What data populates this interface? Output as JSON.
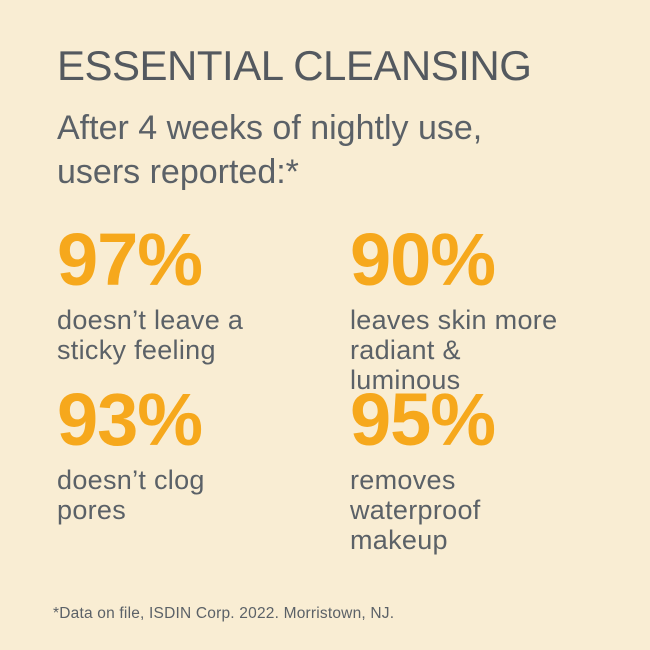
{
  "page": {
    "background_color": "#f9edd3",
    "accent_color": "#f6a81c",
    "text_color": "#5b6167"
  },
  "header": {
    "title": "ESSENTIAL CLEANSING",
    "subtitle": "After 4 weeks of nightly use,\nusers reported:*"
  },
  "stats": [
    {
      "value": "97%",
      "label": "doesn’t leave a\nsticky feeling"
    },
    {
      "value": "90%",
      "label": "leaves skin more\nradiant &\nluminous"
    },
    {
      "value": "93%",
      "label": "doesn’t clog\npores"
    },
    {
      "value": "95%",
      "label": "removes\nwaterproof\nmakeup"
    }
  ],
  "footnote": "*Data on file, ISDIN Corp. 2022. Morristown, NJ.",
  "chart_data": {
    "type": "table",
    "title": "ESSENTIAL CLEANSING",
    "subtitle": "After 4 weeks of nightly use, users reported:*",
    "categories": [
      "doesn’t leave a sticky feeling",
      "leaves skin more radiant & luminous",
      "doesn’t clog pores",
      "removes waterproof makeup"
    ],
    "values": [
      97,
      90,
      93,
      95
    ],
    "unit": "%",
    "source_note": "*Data on file, ISDIN Corp. 2022. Morristown, NJ."
  }
}
